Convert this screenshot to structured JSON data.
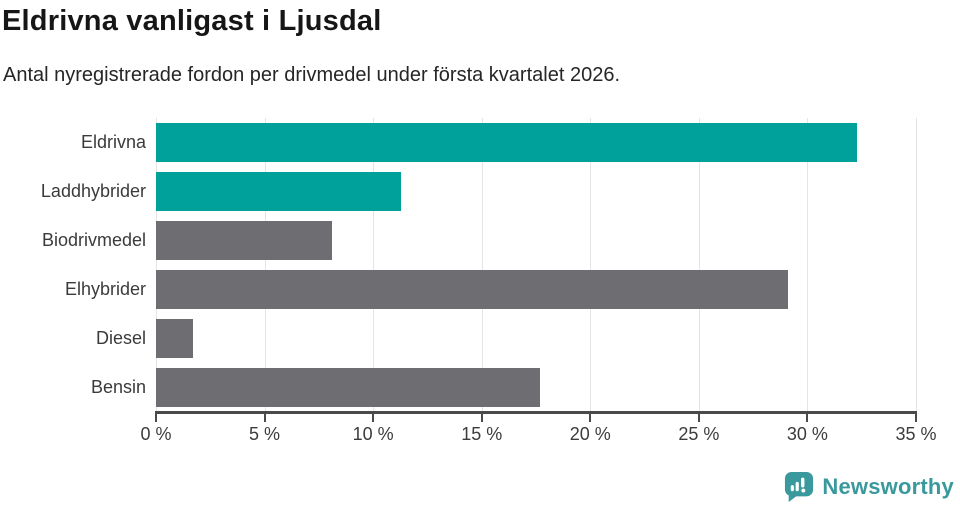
{
  "title": "Eldrivna vanligast i Ljusdal",
  "subtitle": "Antal nyregistrerade fordon per drivmedel under första kvartalet 2026.",
  "chart_data": {
    "type": "bar",
    "orientation": "horizontal",
    "title": "Eldrivna vanligast i Ljusdal",
    "subtitle": "Antal nyregistrerade fordon per drivmedel under första kvartalet 2026.",
    "categories": [
      "Eldrivna",
      "Laddhybrider",
      "Biodrivmedel",
      "Elhybrider",
      "Diesel",
      "Bensin"
    ],
    "values": [
      32.3,
      11.3,
      8.1,
      29.1,
      1.7,
      17.7
    ],
    "unit": "%",
    "xlim": [
      0,
      35
    ],
    "x_ticks": [
      0,
      5,
      10,
      15,
      20,
      25,
      30,
      35
    ],
    "x_tick_labels": [
      "0 %",
      "5 %",
      "10 %",
      "15 %",
      "20 %",
      "25 %",
      "30 %",
      "35 %"
    ],
    "grid": true,
    "legend": "none",
    "bar_colors": [
      "#00a19a",
      "#00a19a",
      "#6d6d72",
      "#6d6d72",
      "#6d6d72",
      "#6d6d72"
    ]
  },
  "colors": {
    "accent_teal": "#00a19a",
    "bar_gray": "#6d6d72",
    "gridline": "#e4e4e4",
    "axis": "#4a4a4c",
    "title_text": "#161616",
    "subtitle_text": "#262626",
    "label_text": "#3b3b3b",
    "logo_teal": "#3a999c"
  },
  "branding": {
    "logo_text": "Newsworthy",
    "logo_icon": "speech-bubble-bar-chart-icon"
  }
}
